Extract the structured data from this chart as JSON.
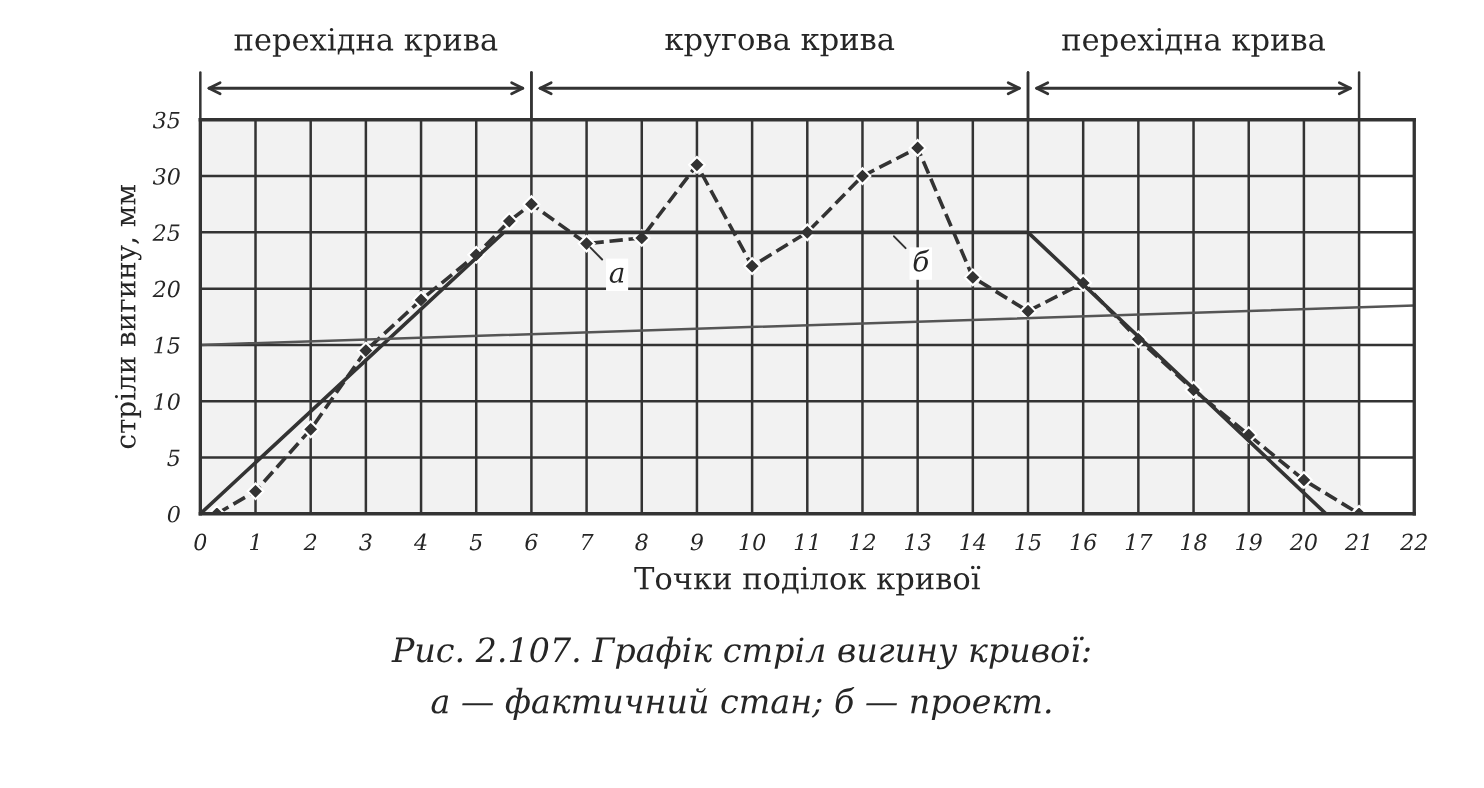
{
  "chart_data": {
    "type": "line",
    "xlabel": "Точки поділок кривої",
    "ylabel": "стріли вигину, мм",
    "xlim": [
      0,
      22
    ],
    "ylim": [
      0,
      35
    ],
    "xticks": [
      0,
      1,
      2,
      3,
      4,
      5,
      6,
      7,
      8,
      9,
      10,
      11,
      12,
      13,
      14,
      15,
      16,
      17,
      18,
      19,
      20,
      21,
      22
    ],
    "yticks": [
      0,
      5,
      10,
      15,
      20,
      25,
      30,
      35
    ],
    "grid": true,
    "legend": false,
    "series": [
      {
        "color": "#333333",
        "line_style": "dashed",
        "marker": "diamond",
        "x": [
          0.3,
          1,
          2,
          3,
          4,
          5,
          5.6,
          6,
          7,
          8,
          9,
          10,
          11,
          12,
          13,
          14,
          15,
          16,
          17,
          18,
          19,
          20,
          21
        ],
        "values": [
          0,
          2,
          7.5,
          14.5,
          19,
          23,
          26,
          27.5,
          24,
          24.5,
          31,
          22,
          25,
          30,
          32.5,
          21,
          18,
          20.5,
          15.5,
          11,
          7,
          3,
          0
        ]
      },
      {
        "color": "#333333",
        "line_style": "solid",
        "marker": "none",
        "x": [
          0,
          5.5,
          15,
          20.4
        ],
        "values": [
          0,
          25,
          25,
          0
        ]
      },
      {
        "color": "#555555",
        "line_style": "solid",
        "marker": "none",
        "x": [
          0,
          22
        ],
        "values": [
          15,
          18.5
        ]
      }
    ],
    "bands": [
      {
        "axis": "x",
        "from": 0,
        "to": 6,
        "label": "перехідна крива",
        "color": "#f2f2f2"
      },
      {
        "axis": "x",
        "from": 6,
        "to": 15,
        "label": "кругова крива",
        "color": "#f2f2f2"
      },
      {
        "axis": "x",
        "from": 15,
        "to": 21,
        "label": "перехідна крива",
        "color": "#f2f2f2"
      }
    ],
    "annotations": [
      {
        "text": "а",
        "x": 7,
        "y": 24
      },
      {
        "text": "б",
        "x": 12.5,
        "y": 25
      },
      "Рис. 2.107. Графік стріл вигину кривої:",
      "а — фактичний стан; б — проект."
    ]
  }
}
